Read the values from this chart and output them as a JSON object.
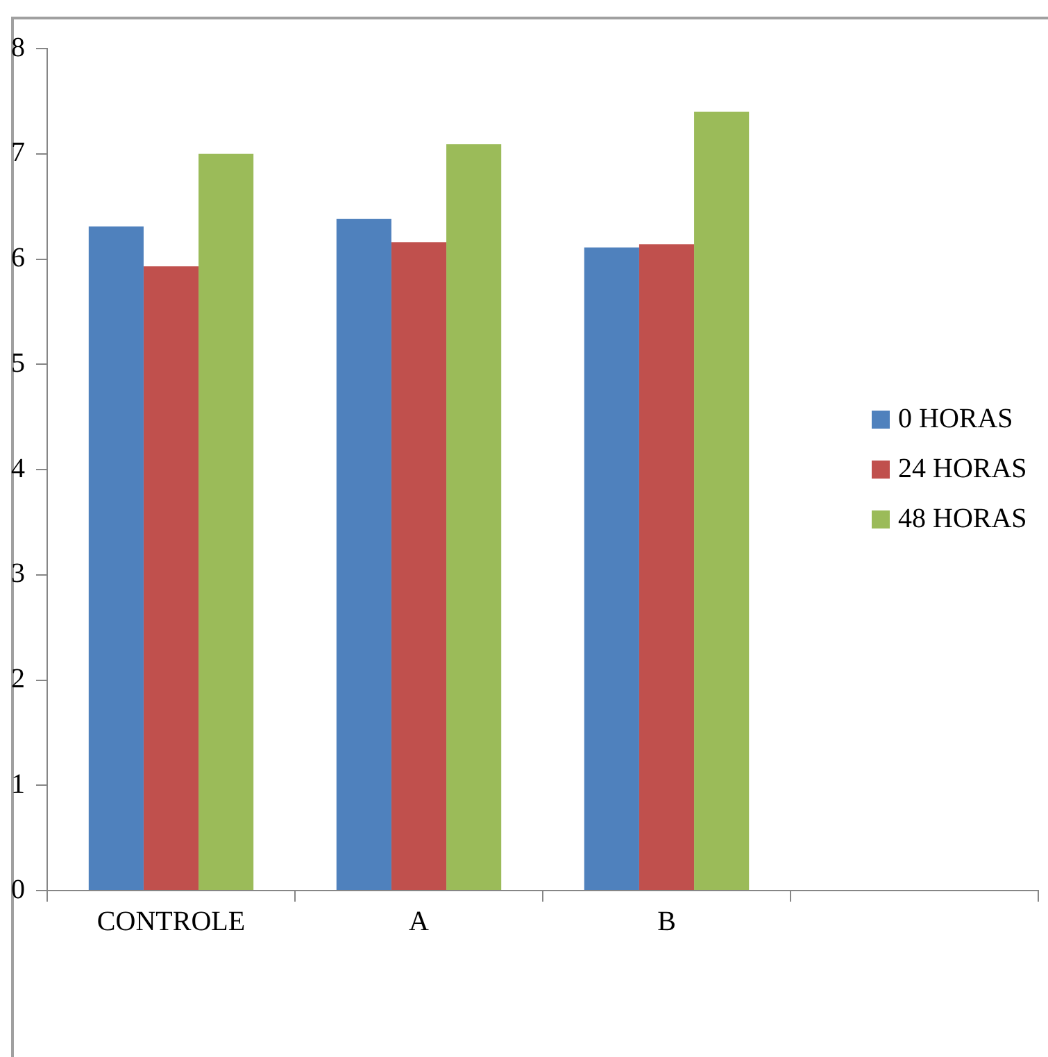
{
  "chart_data": {
    "type": "bar",
    "categories": [
      "CONTROLE",
      "A",
      "B",
      null
    ],
    "series": [
      {
        "name": "0 HORAS",
        "color": "#4f81bd",
        "values": [
          6.31,
          6.38,
          6.11,
          null
        ]
      },
      {
        "name": "24 HORAS",
        "color": "#c0504d",
        "values": [
          5.93,
          6.16,
          6.14,
          null
        ]
      },
      {
        "name": "48 HORAS",
        "color": "#9bbb59",
        "values": [
          7.0,
          7.09,
          7.4,
          null
        ]
      }
    ],
    "ylim": [
      0,
      8
    ],
    "yticks": [
      0,
      1,
      2,
      3,
      4,
      5,
      6,
      7,
      8
    ],
    "grid": false,
    "legend": "right"
  }
}
